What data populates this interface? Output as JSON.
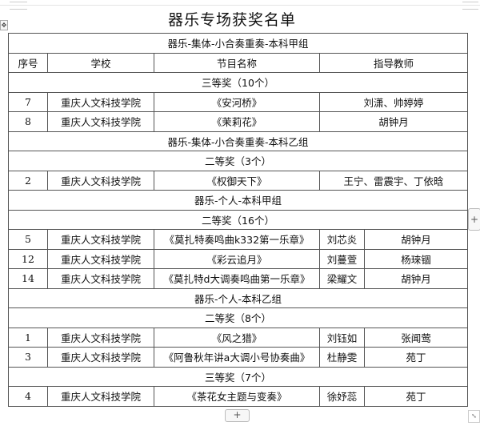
{
  "title": "器乐专场获奖名单",
  "headers": [
    "序号",
    "学校",
    "节目名称",
    "指导教师"
  ],
  "rows": [
    {
      "type": "group",
      "text": "器乐-集体-小合奏重奏-本科甲组"
    },
    {
      "type": "header"
    },
    {
      "type": "award",
      "text": "三等奖（10个）"
    },
    {
      "type": "team",
      "no": "7",
      "school": "重庆人文科技学院",
      "program": "《安河桥》",
      "teacher": "刘潇、帅婷婷"
    },
    {
      "type": "team",
      "no": "8",
      "school": "重庆人文科技学院",
      "program": "《茉莉花》",
      "teacher": "胡钟月"
    },
    {
      "type": "group",
      "text": "器乐-集体-小合奏重奏-本科乙组"
    },
    {
      "type": "award",
      "text": "二等奖（3个）"
    },
    {
      "type": "team",
      "no": "2",
      "school": "重庆人文科技学院",
      "program": "《权御天下》",
      "teacher": "王宁、雷震宇、丁依晗"
    },
    {
      "type": "group",
      "text": "器乐-个人-本科甲组"
    },
    {
      "type": "award",
      "text": "二等奖（16个）"
    },
    {
      "type": "solo",
      "no": "5",
      "school": "重庆人文科技学院",
      "program": "《莫扎特奏鸣曲k332第一乐章》",
      "student": "刘芯炎",
      "teacher": "胡钟月"
    },
    {
      "type": "solo",
      "no": "12",
      "school": "重庆人文科技学院",
      "program": "《彩云追月》",
      "student": "刘蔓萱",
      "teacher": "杨琜锢"
    },
    {
      "type": "solo",
      "no": "14",
      "school": "重庆人文科技学院",
      "program": "《莫扎特d大调奏鸣曲第一乐章》",
      "student": "梁耀文",
      "teacher": "胡钟月"
    },
    {
      "type": "group",
      "text": "器乐-个人-本科乙组"
    },
    {
      "type": "award",
      "text": "二等奖（8个）"
    },
    {
      "type": "solo",
      "no": "1",
      "school": "重庆人文科技学院",
      "program": "《风之猎》",
      "student": "刘钰如",
      "teacher": "张闻莺"
    },
    {
      "type": "solo",
      "no": "3",
      "school": "重庆人文科技学院",
      "program": "《阿鲁秋年讲a大调小号协奏曲》",
      "student": "杜静雯",
      "teacher": "苑丁"
    },
    {
      "type": "award",
      "text": "三等奖（7个）"
    },
    {
      "type": "solo",
      "no": "4",
      "school": "重庆人文科技学院",
      "program": "《茶花女主题与变奏》",
      "student": "徐妤蕊",
      "teacher": "苑丁"
    }
  ],
  "controls": {
    "add_row": "+",
    "add_column": "+",
    "move_handle": "move-icon",
    "resize_handle": "resize-icon"
  }
}
